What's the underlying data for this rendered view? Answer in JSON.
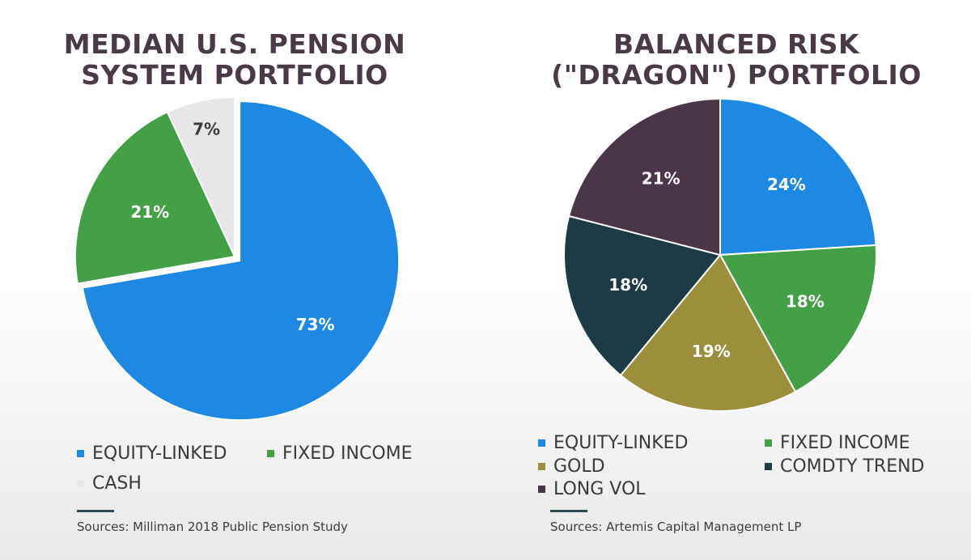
{
  "chart_data": [
    {
      "type": "pie",
      "title_lines": [
        "MEDIAN U.S. PENSION",
        "SYSTEM PORTFOLIO"
      ],
      "slices": [
        {
          "name": "EQUITY-LINKED",
          "value": 73,
          "label": "73%",
          "color": "#1e88e5",
          "label_color": "#ffffff"
        },
        {
          "name": "FIXED INCOME",
          "value": 21,
          "label": "21%",
          "color": "#43a047",
          "label_color": "#ffffff"
        },
        {
          "name": "CASH",
          "value": 7,
          "label": "7%",
          "color": "#e8e6e8",
          "label_color": "#3a3a3a"
        }
      ],
      "legend": [
        "EQUITY-LINKED",
        "FIXED INCOME",
        "CASH"
      ],
      "source": "Sources:  Milliman 2018 Public Pension Study"
    },
    {
      "type": "pie",
      "title_lines": [
        "BALANCED RISK",
        "(\"DRAGON\") PORTFOLIO"
      ],
      "slices": [
        {
          "name": "EQUITY-LINKED",
          "value": 24,
          "label": "24%",
          "color": "#1e88e5",
          "label_color": "#ffffff"
        },
        {
          "name": "FIXED INCOME",
          "value": 18,
          "label": "18%",
          "color": "#43a047",
          "label_color": "#ffffff"
        },
        {
          "name": "GOLD",
          "value": 19,
          "label": "19%",
          "color": "#9b8f3b",
          "label_color": "#ffffff"
        },
        {
          "name": "COMDTY TREND",
          "value": 18,
          "label": "18%",
          "color": "#1c3b44",
          "label_color": "#ffffff"
        },
        {
          "name": "LONG VOL",
          "value": 21,
          "label": "21%",
          "color": "#4b3548",
          "label_color": "#ffffff"
        }
      ],
      "legend": [
        "EQUITY-LINKED",
        "FIXED INCOME",
        "GOLD",
        "COMDTY TREND",
        "LONG VOL"
      ],
      "source": "Sources:  Artemis Capital Management LP"
    }
  ]
}
